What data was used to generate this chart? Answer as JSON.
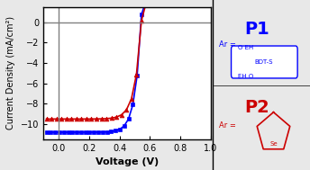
{
  "title": "",
  "xlabel": "Voltage (V)",
  "ylabel": "Current Density (mA/cm²)",
  "xlim": [
    -0.1,
    1.0
  ],
  "ylim": [
    -11.5,
    1.5
  ],
  "xticks": [
    0.0,
    0.2,
    0.4,
    0.6,
    0.8,
    1.0
  ],
  "yticks": [
    0,
    -2,
    -4,
    -6,
    -8,
    -10
  ],
  "background_color": "#e8e8e8",
  "plot_bg_color": "#ffffff",
  "p1_color": "#0000ff",
  "p2_color": "#cc0000",
  "vline_x": 0.0,
  "p1_label": "P1",
  "p2_label": "P2"
}
